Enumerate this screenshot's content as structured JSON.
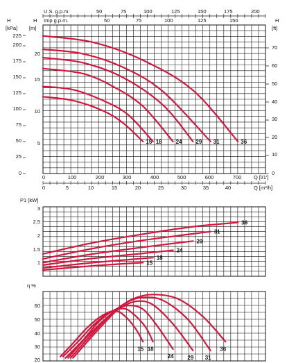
{
  "chart_data": [
    {
      "type": "line",
      "title": "",
      "top_axes": {
        "us_gpm": {
          "label": "U.S. g.p.m.",
          "ticks": [
            "50",
            "75",
            "100",
            "125",
            "150",
            "175",
            "200"
          ],
          "values": [
            50,
            75,
            100,
            125,
            150,
            175,
            200
          ]
        },
        "imp_gpm": {
          "label": "Imp g.p.m.",
          "ticks": [
            "50",
            "75",
            "100",
            "125",
            "150"
          ],
          "values": [
            50,
            75,
            100,
            125,
            150
          ]
        }
      },
      "x_axes": {
        "ls": {
          "label": "Q [l/1']",
          "ticks": [
            "0",
            "100",
            "200",
            "300",
            "400",
            "500",
            "600",
            "700"
          ],
          "values": [
            0,
            100,
            200,
            300,
            400,
            500,
            600,
            700
          ]
        },
        "m3h": {
          "label": "Q [m³/h]",
          "ticks": [
            "0",
            "5",
            "10",
            "15",
            "20",
            "25",
            "30",
            "35",
            "40"
          ],
          "values": [
            0,
            5,
            10,
            15,
            20,
            25,
            30,
            35,
            40
          ]
        }
      },
      "y_axes": {
        "kpa": {
          "title": "H",
          "unit": "[kPa]",
          "ticks": [
            "0",
            "25",
            "50",
            "75",
            "100",
            "125",
            "150",
            "175",
            "200",
            "225"
          ],
          "values": [
            0,
            25,
            50,
            75,
            100,
            125,
            150,
            175,
            200,
            225
          ]
        },
        "m": {
          "title": "H",
          "unit": "[m]",
          "ticks": [
            "5",
            "10",
            "15",
            "20"
          ],
          "values": [
            5,
            10,
            15,
            20
          ]
        },
        "ft": {
          "title": "H",
          "unit": "[ft]",
          "ticks": [
            "0",
            "10",
            "20",
            "30",
            "40",
            "50",
            "60",
            "70"
          ],
          "values": [
            0,
            10,
            20,
            30,
            40,
            50,
            60,
            70
          ]
        }
      },
      "xlim_m3h": [
        0,
        44.5
      ],
      "ylim_m": [
        0,
        23.2
      ],
      "grid": true,
      "series": [
        {
          "name": "15",
          "x": [
            0,
            6,
            12,
            16,
            20
          ],
          "y": [
            12.0,
            11.4,
            9.8,
            7.9,
            5.0
          ]
        },
        {
          "name": "18",
          "x": [
            0,
            6,
            12,
            17,
            22
          ],
          "y": [
            13.6,
            13.1,
            11.4,
            9.2,
            5.0
          ]
        },
        {
          "name": "24",
          "x": [
            0,
            8,
            14,
            20,
            26
          ],
          "y": [
            16.4,
            15.6,
            13.6,
            10.5,
            5.0
          ]
        },
        {
          "name": "29",
          "x": [
            0,
            8,
            16,
            24,
            30
          ],
          "y": [
            18.1,
            17.3,
            15.0,
            10.7,
            5.0
          ]
        },
        {
          "name": "31",
          "x": [
            0,
            8,
            16,
            24,
            33.5
          ],
          "y": [
            19.4,
            18.7,
            16.6,
            12.8,
            5.0
          ]
        },
        {
          "name": "36",
          "x": [
            0,
            10,
            20,
            30,
            39
          ],
          "y": [
            21.5,
            20.5,
            17.7,
            13.0,
            5.0
          ]
        }
      ],
      "colors": {
        "curve": "#d4163c"
      }
    },
    {
      "type": "line",
      "title": "",
      "ylabel": "P1 [kW]",
      "y_ticks": [
        "1",
        "1.5",
        "2",
        "2.5",
        "3"
      ],
      "y_values": [
        1,
        1.5,
        2,
        2.5,
        3
      ],
      "ylim": [
        0.5,
        3.3
      ],
      "xlim_m3h": [
        0,
        44.5
      ],
      "grid": true,
      "series": [
        {
          "name": "15",
          "x": [
            0,
            10,
            20
          ],
          "y": [
            0.75,
            0.92,
            1.05
          ]
        },
        {
          "name": "18",
          "x": [
            0,
            10,
            22
          ],
          "y": [
            0.83,
            1.05,
            1.25
          ]
        },
        {
          "name": "24",
          "x": [
            0,
            10,
            20,
            26
          ],
          "y": [
            0.95,
            1.22,
            1.42,
            1.55
          ]
        },
        {
          "name": "29",
          "x": [
            0,
            10,
            20,
            30
          ],
          "y": [
            1.05,
            1.4,
            1.67,
            1.92
          ]
        },
        {
          "name": "31",
          "x": [
            0,
            10,
            20,
            33.5
          ],
          "y": [
            1.2,
            1.62,
            1.95,
            2.3
          ]
        },
        {
          "name": "36",
          "x": [
            0,
            10,
            20,
            30,
            39
          ],
          "y": [
            1.4,
            1.85,
            2.2,
            2.5,
            2.67
          ]
        }
      ]
    },
    {
      "type": "line",
      "title": "",
      "ylabel": "η %",
      "y_ticks": [
        "20",
        "30",
        "40",
        "50",
        "60"
      ],
      "y_values": [
        20,
        30,
        40,
        50,
        60
      ],
      "ylim": [
        20,
        67
      ],
      "xlim_m3h": [
        0,
        44.5
      ],
      "grid": true,
      "series": [
        {
          "name": "15",
          "x": [
            3.5,
            6,
            9,
            12,
            14.5,
            16.5,
            18.5,
            20
          ],
          "y": [
            23,
            32,
            43,
            51,
            54,
            50,
            42,
            33
          ]
        },
        {
          "name": "18",
          "x": [
            4,
            7,
            10,
            13,
            16,
            18,
            20.5,
            22
          ],
          "y": [
            23,
            33,
            44,
            52,
            55.5,
            52,
            43,
            33
          ]
        },
        {
          "name": "24",
          "x": [
            4.5,
            8,
            11,
            14,
            17,
            20,
            23,
            26
          ],
          "y": [
            22,
            34,
            46,
            54,
            57.5,
            55,
            43,
            28
          ]
        },
        {
          "name": "29",
          "x": [
            5,
            9,
            13,
            16,
            19,
            22,
            26,
            30
          ],
          "y": [
            22,
            37,
            50,
            57,
            60.5,
            58,
            45,
            27
          ]
        },
        {
          "name": "31",
          "x": [
            5.5,
            10,
            14,
            17,
            20,
            24,
            29,
            33.5
          ],
          "y": [
            22,
            39,
            53,
            60,
            63,
            61,
            48,
            27
          ]
        },
        {
          "name": "36",
          "x": [
            6,
            11,
            15,
            18,
            22,
            27,
            32,
            36.5
          ],
          "y": [
            22,
            41,
            55,
            62,
            65,
            62,
            50,
            33
          ]
        }
      ]
    }
  ]
}
